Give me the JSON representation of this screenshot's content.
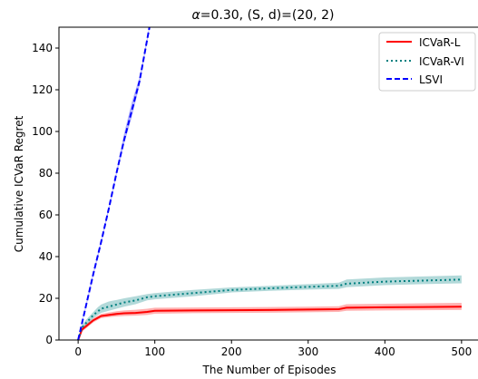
{
  "chart_data": {
    "type": "line",
    "title_prefix": "α",
    "title_rest": "=0.30, (S, d)=(20, 2)",
    "xlabel": "The Number of Episodes",
    "ylabel": "Cumulative ICVaR Regret",
    "xlim": [
      -25,
      525
    ],
    "ylim": [
      0,
      150
    ],
    "x_ticks": [
      0,
      100,
      200,
      300,
      400,
      500
    ],
    "x_tick_labels": [
      "0",
      "100",
      "200",
      "300",
      "400",
      "500"
    ],
    "y_ticks": [
      0,
      20,
      40,
      60,
      80,
      100,
      120,
      140
    ],
    "y_tick_labels": [
      "0",
      "20",
      "40",
      "60",
      "80",
      "100",
      "120",
      "140"
    ],
    "grid": false,
    "legend_position": "top-right",
    "series": [
      {
        "name": "ICVaR-L",
        "color": "#ff0000",
        "dash": "solid",
        "x": [
          0,
          5,
          10,
          15,
          20,
          25,
          30,
          40,
          50,
          60,
          75,
          90,
          100,
          150,
          200,
          250,
          300,
          340,
          350,
          400,
          450,
          500
        ],
        "y": [
          0,
          5,
          6.5,
          8,
          9.5,
          10.5,
          11.5,
          12,
          12.5,
          12.8,
          13,
          13.5,
          14,
          14.2,
          14.3,
          14.4,
          14.6,
          14.8,
          15.5,
          15.7,
          15.8,
          16
        ],
        "upper": [
          0,
          6,
          7.5,
          9,
          10.5,
          11.5,
          12.5,
          13.2,
          13.8,
          14.2,
          14.5,
          15,
          15.5,
          15.6,
          15.7,
          15.8,
          16,
          16.2,
          17.2,
          17.4,
          17.6,
          17.8
        ],
        "lower": [
          0,
          4,
          5.5,
          7,
          8.5,
          9.5,
          10.5,
          11,
          11.3,
          11.5,
          11.7,
          12,
          12.6,
          12.9,
          13,
          13.1,
          13.3,
          13.5,
          14,
          14.2,
          14.3,
          14.4
        ]
      },
      {
        "name": "ICVaR-VI",
        "color": "#008080",
        "dash": "dotted",
        "x": [
          0,
          5,
          10,
          15,
          20,
          25,
          30,
          40,
          50,
          60,
          75,
          90,
          100,
          150,
          200,
          250,
          300,
          340,
          350,
          400,
          450,
          500
        ],
        "y": [
          0,
          6,
          8,
          10,
          12,
          13.5,
          15,
          16,
          17,
          18,
          19,
          20.5,
          21,
          22.5,
          24,
          24.8,
          25.5,
          26,
          27,
          28,
          28.5,
          29
        ],
        "upper": [
          0,
          7,
          9.5,
          11.5,
          13.5,
          15.5,
          17,
          18.5,
          19.2,
          20,
          21,
          22,
          22.5,
          24,
          25.2,
          26,
          26.8,
          27.5,
          29,
          30,
          30.5,
          31
        ],
        "lower": [
          0,
          5,
          6.8,
          8.5,
          10.5,
          11.8,
          13,
          14,
          15,
          16,
          17.2,
          19,
          19.5,
          21,
          22.8,
          23.6,
          24.2,
          24.5,
          25.3,
          26.3,
          26.8,
          27.2
        ]
      },
      {
        "name": "LSVI",
        "color": "#0000ff",
        "dash": "dashed",
        "x": [
          0,
          10,
          20,
          30,
          40,
          50,
          60,
          70,
          80,
          90,
          93
        ],
        "y": [
          0,
          16,
          32,
          47,
          63,
          80,
          96,
          110,
          124,
          144,
          150
        ],
        "upper": [
          0,
          17,
          33,
          48,
          64,
          81,
          99,
          114,
          126,
          145,
          151
        ],
        "lower": [
          0,
          15,
          31,
          46,
          62,
          79,
          94,
          107,
          122,
          143,
          149
        ]
      }
    ]
  }
}
